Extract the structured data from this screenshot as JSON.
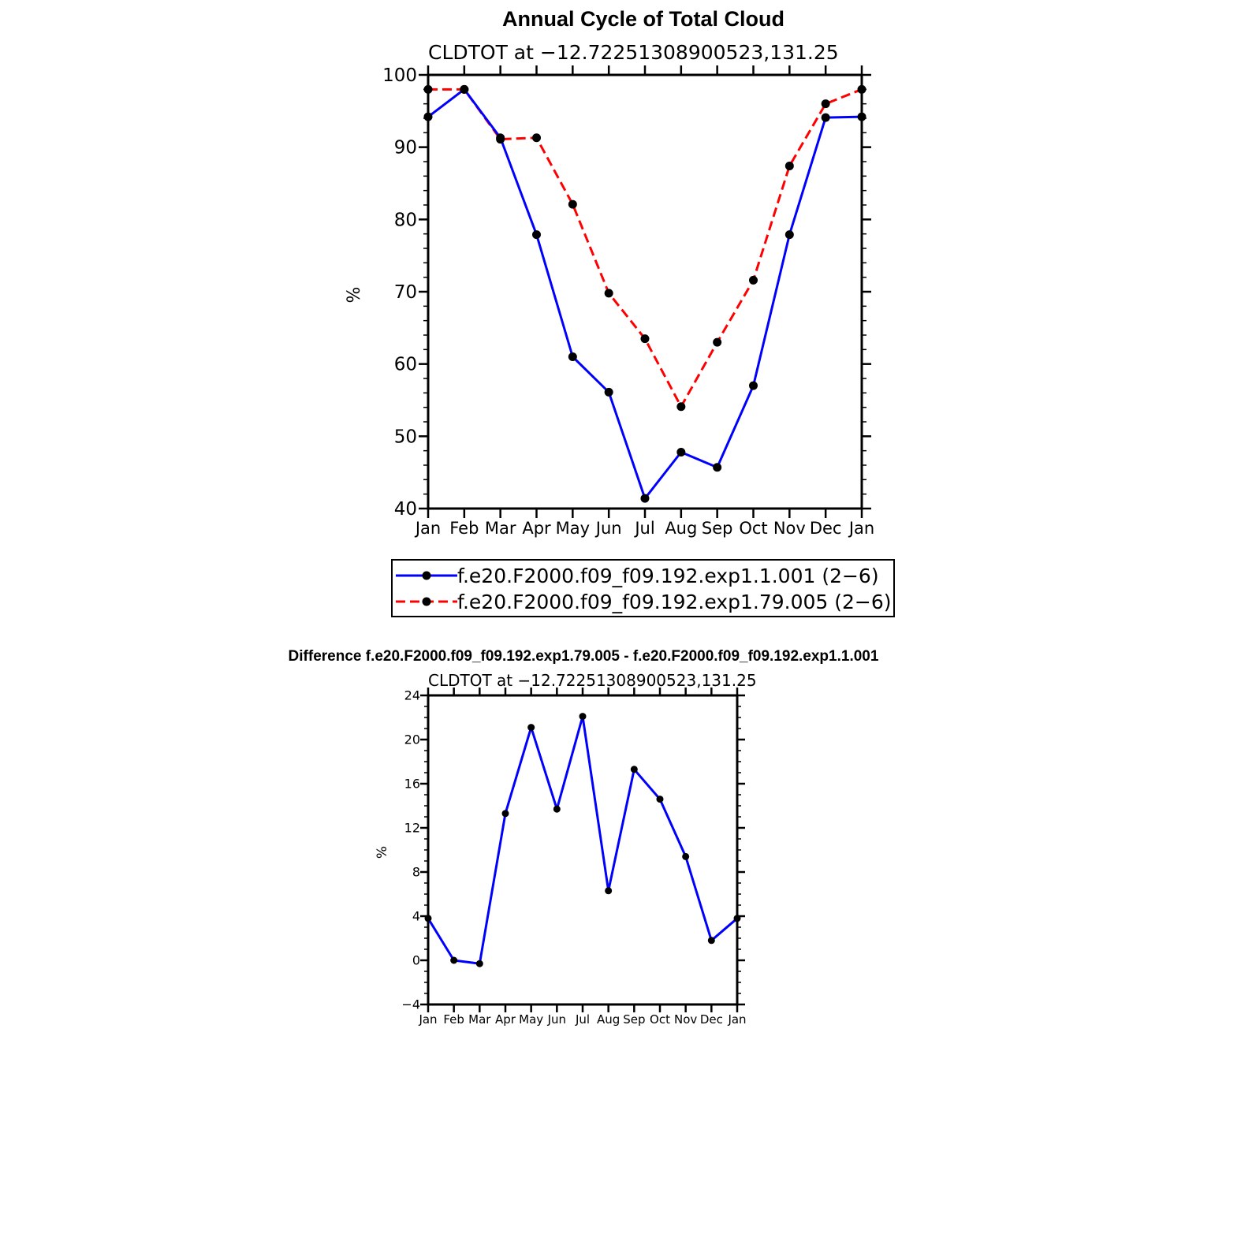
{
  "chart_data": [
    {
      "type": "line",
      "title": "Annual Cycle of Total Cloud",
      "subtitle": "CLDTOT at −12.72251308900523,131.25",
      "ylabel": "%",
      "ylim": [
        40,
        100
      ],
      "yticks": [
        "40",
        "50",
        "60",
        "70",
        "80",
        "90",
        "100"
      ],
      "categories": [
        "Jan",
        "Feb",
        "Mar",
        "Apr",
        "May",
        "Jun",
        "Jul",
        "Aug",
        "Sep",
        "Oct",
        "Nov",
        "Dec",
        "Jan"
      ],
      "grid": false,
      "legend_position": "bottom",
      "series": [
        {
          "name": "f.e20.F2000.f09_f09.192.exp1.1.001 (2−6)",
          "color": "#0000ff",
          "style": "solid",
          "values": [
            94.2,
            98.0,
            91.3,
            77.9,
            61.0,
            56.1,
            41.4,
            47.8,
            45.7,
            57.0,
            77.9,
            94.1,
            94.2
          ]
        },
        {
          "name": "f.e20.F2000.f09_f09.192.exp1.79.005 (2−6)",
          "color": "#ff0000",
          "style": "dashed",
          "values": [
            98.0,
            98.0,
            91.1,
            91.3,
            82.1,
            69.8,
            63.5,
            54.1,
            63.0,
            71.6,
            87.4,
            96.0,
            98.0
          ]
        }
      ]
    },
    {
      "type": "line",
      "title": "Difference f.e20.F2000.f09_f09.192.exp1.79.005 - f.e20.F2000.f09_f09.192.exp1.1.001",
      "subtitle": "CLDTOT at −12.72251308900523,131.25",
      "ylabel": "%",
      "ylim": [
        -4,
        24
      ],
      "yticks": [
        "−4",
        "0",
        "4",
        "8",
        "12",
        "16",
        "20",
        "24"
      ],
      "categories": [
        "Jan",
        "Feb",
        "Mar",
        "Apr",
        "May",
        "Jun",
        "Jul",
        "Aug",
        "Sep",
        "Oct",
        "Nov",
        "Dec",
        "Jan"
      ],
      "grid": false,
      "series": [
        {
          "color": "#0000ff",
          "style": "solid",
          "values": [
            3.8,
            0.0,
            -0.3,
            13.3,
            21.1,
            13.7,
            22.1,
            6.3,
            17.3,
            14.6,
            9.4,
            1.8,
            3.8
          ]
        }
      ]
    }
  ]
}
